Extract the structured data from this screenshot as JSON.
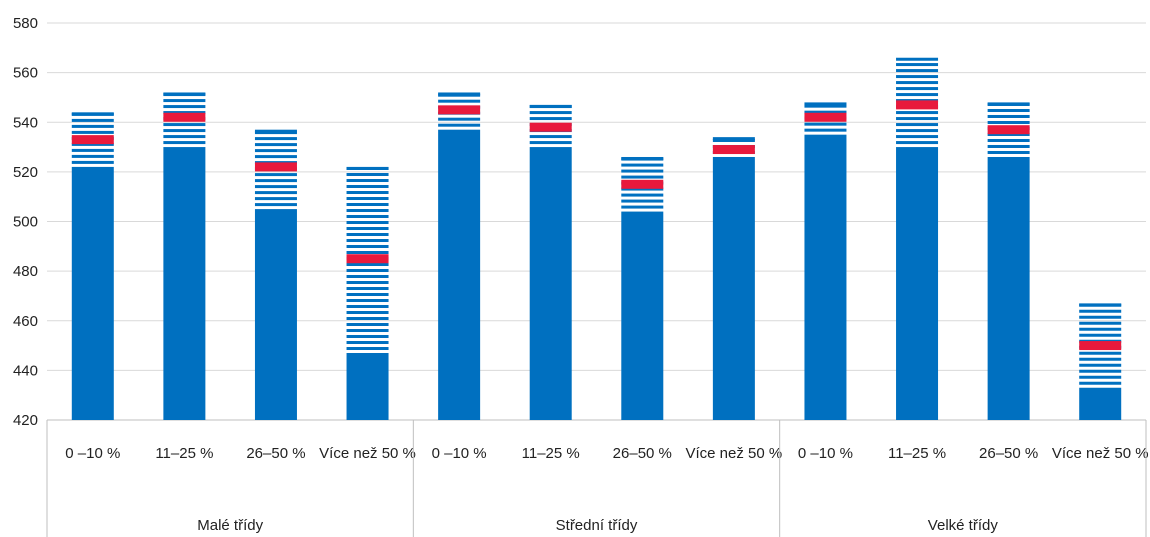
{
  "chart_data": {
    "type": "bar",
    "y_ticks": [
      "420",
      "440",
      "460",
      "480",
      "500",
      "520",
      "540",
      "560",
      "580"
    ],
    "ylim": [
      420,
      580
    ],
    "grid": true,
    "colors": {
      "bar": "#0070C0",
      "mean": "#E8193C",
      "grid": "#D9D9D9",
      "axis": "#BFBFBF"
    },
    "groups": [
      {
        "name": "Malé třídy",
        "categories": [
          "0 –10 %",
          "11–25 %",
          "26–50 %",
          "Více než 50 %"
        ],
        "solid_top": [
          522,
          530,
          505,
          447
        ],
        "mean": [
          533,
          542,
          522,
          485
        ],
        "max": [
          544,
          552,
          537,
          522
        ]
      },
      {
        "name": "Střední třídy",
        "categories": [
          "0 –10 %",
          "11–25 %",
          "26–50 %",
          "Více než 50 %"
        ],
        "solid_top": [
          537,
          530,
          504,
          526
        ],
        "mean": [
          545,
          538,
          515,
          529
        ],
        "max": [
          552,
          547,
          526,
          534
        ]
      },
      {
        "name": "Velké třídy",
        "categories": [
          "0 –10 %",
          "11–25 %",
          "26–50 %",
          "Více než 50 %"
        ],
        "solid_top": [
          535,
          530,
          526,
          433
        ],
        "mean": [
          542,
          547,
          537,
          450
        ],
        "max": [
          548,
          566,
          548,
          467
        ]
      }
    ]
  }
}
